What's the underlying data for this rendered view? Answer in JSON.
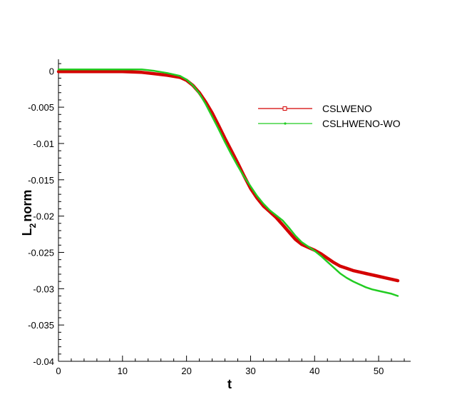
{
  "chart_data": {
    "type": "line",
    "title": "",
    "xlabel": "t",
    "ylabel_main": "L",
    "ylabel_sub": "2",
    "ylabel_rest": "norm",
    "xlim": [
      0,
      55
    ],
    "ylim": [
      -0.04,
      0.001
    ],
    "xticks": [
      0,
      10,
      20,
      30,
      40,
      50
    ],
    "xtick_labels": [
      "0",
      "10",
      "20",
      "30",
      "40",
      "50"
    ],
    "yticks": [
      0,
      -0.005,
      -0.01,
      -0.015,
      -0.02,
      -0.025,
      -0.03,
      -0.035,
      -0.04
    ],
    "ytick_labels": [
      "0",
      "-0.005",
      "-0.01",
      "-0.015",
      "-0.02",
      "-0.025",
      "-0.03",
      "-0.035",
      "-0.04"
    ],
    "grid": false,
    "legend_position": "upper-right",
    "series": [
      {
        "name": "CSLWENO",
        "color": "#d40000",
        "marker": "square",
        "thick": true,
        "x": [
          0,
          5,
          10,
          13,
          15,
          17,
          19,
          20,
          21,
          22,
          23,
          24,
          25,
          26,
          27,
          28,
          29,
          30,
          31,
          32,
          33,
          34,
          35,
          36,
          37,
          38,
          39,
          40,
          41,
          42,
          43,
          44,
          45,
          46,
          47,
          48,
          49,
          50,
          51,
          52,
          53
        ],
        "y": [
          -0.0001,
          -0.0001,
          -0.0001,
          -0.0002,
          -0.0004,
          -0.0006,
          -0.0009,
          -0.0013,
          -0.002,
          -0.003,
          -0.0043,
          -0.0058,
          -0.0075,
          -0.0093,
          -0.011,
          -0.0127,
          -0.0145,
          -0.0162,
          -0.0175,
          -0.0186,
          -0.0194,
          -0.0202,
          -0.0212,
          -0.0222,
          -0.0232,
          -0.0239,
          -0.0243,
          -0.0247,
          -0.0252,
          -0.0258,
          -0.0264,
          -0.0269,
          -0.0272,
          -0.0275,
          -0.0277,
          -0.0279,
          -0.0281,
          -0.0283,
          -0.0285,
          -0.0287,
          -0.0289
        ]
      },
      {
        "name": "CSLHWENO-WO",
        "color": "#22cc22",
        "marker": "dot",
        "thick": false,
        "x": [
          0,
          5,
          10,
          13,
          15,
          17,
          19,
          20,
          21,
          22,
          23,
          24,
          25,
          26,
          27,
          28,
          29,
          30,
          31,
          32,
          33,
          34,
          35,
          36,
          37,
          38,
          39,
          40,
          41,
          42,
          43,
          44,
          45,
          46,
          47,
          48,
          49,
          50,
          51,
          52,
          53
        ],
        "y": [
          0.0002,
          0.0002,
          0.0002,
          0.0002,
          0.0,
          -0.0003,
          -0.0007,
          -0.0012,
          -0.002,
          -0.0031,
          -0.0046,
          -0.0063,
          -0.008,
          -0.0098,
          -0.0115,
          -0.0131,
          -0.0146,
          -0.0159,
          -0.0172,
          -0.0183,
          -0.0192,
          -0.0199,
          -0.0206,
          -0.0216,
          -0.0227,
          -0.0236,
          -0.0242,
          -0.0248,
          -0.0255,
          -0.0263,
          -0.0271,
          -0.0279,
          -0.0285,
          -0.029,
          -0.0294,
          -0.0298,
          -0.0301,
          -0.0303,
          -0.0305,
          -0.0307,
          -0.031
        ]
      }
    ]
  }
}
